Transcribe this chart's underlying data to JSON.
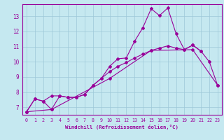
{
  "xlabel": "Windchill (Refroidissement éolien,°C)",
  "background_color": "#c5e8f0",
  "grid_color": "#9dc8d8",
  "line_color": "#990099",
  "xlim": [
    -0.5,
    23.5
  ],
  "ylim": [
    6.5,
    13.8
  ],
  "yticks": [
    7,
    8,
    9,
    10,
    11,
    12,
    13
  ],
  "xticks": [
    0,
    1,
    2,
    3,
    4,
    5,
    6,
    7,
    8,
    9,
    10,
    11,
    12,
    13,
    14,
    15,
    16,
    17,
    18,
    19,
    20,
    21,
    22,
    23
  ],
  "curve1_x": [
    0,
    1,
    2,
    3,
    4,
    5,
    6,
    7,
    8,
    9,
    10,
    11,
    12,
    13,
    14,
    15,
    16,
    17,
    18,
    19,
    20,
    21
  ],
  "curve1_y": [
    6.7,
    7.55,
    7.4,
    6.85,
    7.75,
    7.65,
    7.65,
    7.85,
    8.45,
    8.9,
    9.7,
    10.2,
    10.25,
    11.35,
    12.25,
    13.5,
    13.05,
    13.55,
    11.85,
    10.8,
    11.1,
    10.7
  ],
  "curve2_x": [
    0,
    1,
    2,
    3,
    4,
    5,
    6,
    7,
    8,
    9,
    10,
    11,
    12,
    13,
    14,
    15,
    16,
    17,
    18,
    19,
    20,
    21,
    22,
    23
  ],
  "curve2_y": [
    6.7,
    7.55,
    7.4,
    7.75,
    7.75,
    7.65,
    7.65,
    7.85,
    8.45,
    8.9,
    9.35,
    9.7,
    9.95,
    10.25,
    10.5,
    10.75,
    10.9,
    11.05,
    10.9,
    10.8,
    11.1,
    10.7,
    10.0,
    8.45
  ],
  "curve3_x": [
    0,
    3,
    10,
    15,
    20,
    23
  ],
  "curve3_y": [
    6.7,
    6.85,
    8.9,
    10.75,
    10.8,
    8.45
  ]
}
